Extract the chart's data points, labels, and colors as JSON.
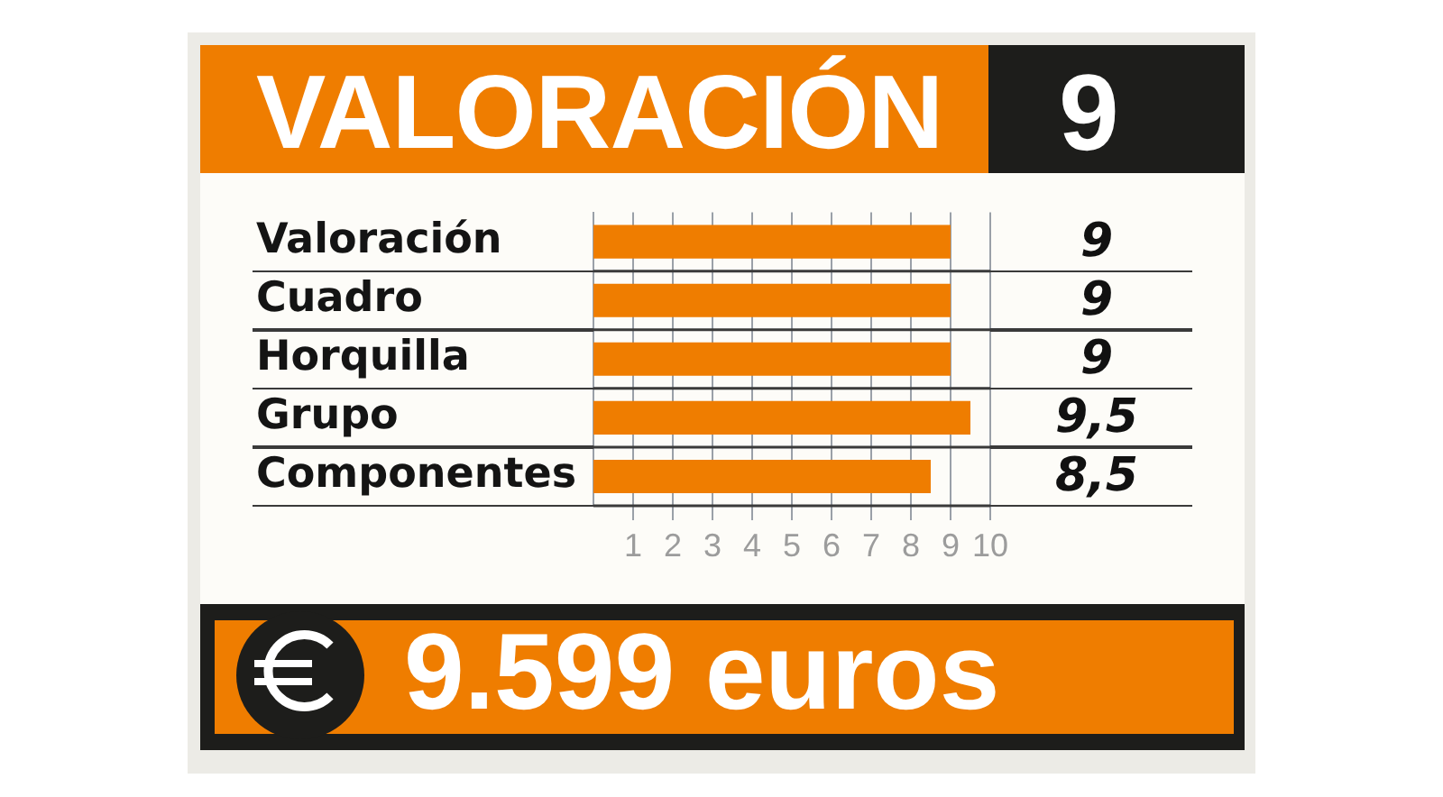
{
  "chart_data": {
    "type": "bar",
    "orientation": "horizontal",
    "title": "VALORACIÓN",
    "categories": [
      "Valoración",
      "Cuadro",
      "Horquilla",
      "Grupo",
      "Componentes"
    ],
    "values": [
      9,
      9,
      9,
      9.5,
      8.5
    ],
    "value_labels": [
      "9",
      "9",
      "9",
      "9,5",
      "8,5"
    ],
    "color": "#ef7d00",
    "xlim": [
      0,
      10
    ],
    "xticks": [
      1,
      2,
      3,
      4,
      5,
      6,
      7,
      8,
      9,
      10
    ],
    "grid": true,
    "annotations": [
      "9",
      "9.599 euros"
    ]
  }
}
